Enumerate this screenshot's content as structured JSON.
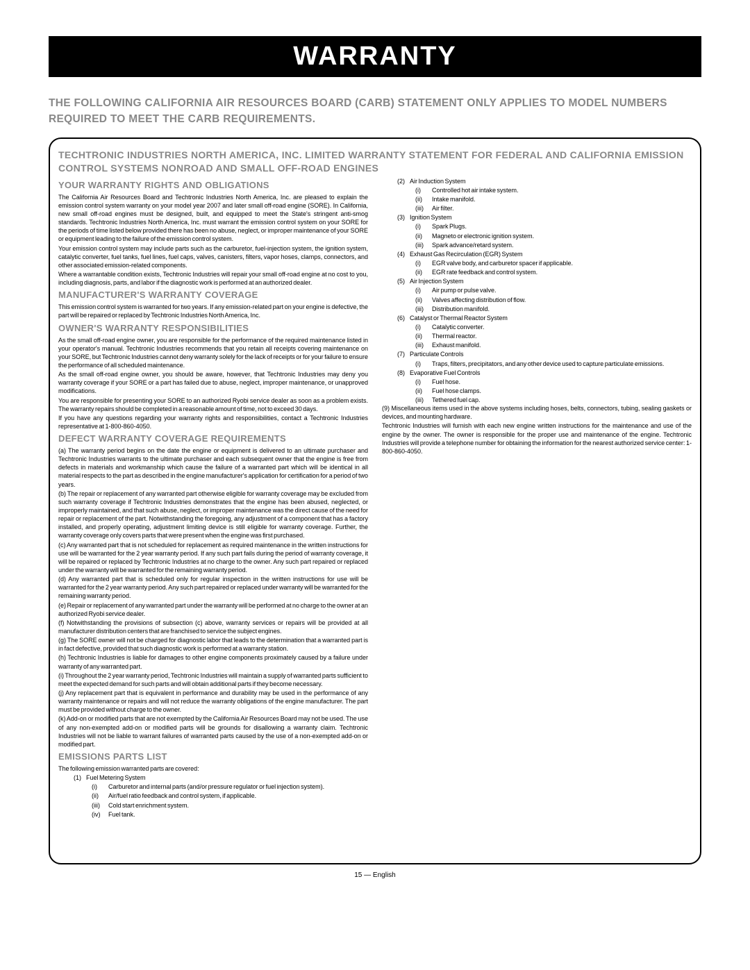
{
  "banner": "WARRANTY",
  "subhead": "THE FOLLOWING CALIFORNIA AIR RESOURCES BOARD (CARB) STATEMENT ONLY APPLIES TO MODEL NUMBERS REQUIRED TO MEET THE CARB REQUIREMENTS.",
  "boxhead1": "TECHTRONIC INDUSTRIES NORTH AMERICA, INC. LIMITED WARRANTY STATEMENT FOR FEDERAL AND CALIFORNIA EMISSION CONTROL SYSTEMS NONROAD AND SMALL OFF-ROAD ENGINES",
  "sect_rights": "YOUR WARRANTY RIGHTS AND OBLIGATIONS",
  "rights": [
    "The California Air Resources Board and Techtronic Industries North America, Inc. are pleased to explain the emission control system warranty on your model year 2007 and later small off-road engine (SORE). In California, new small off-road engines must be designed, built, and equipped to meet the State's stringent anti-smog standards. Techtronic Industries North America, Inc. must warrant the emission control system on your SORE for the periods of time listed below provided there has been no abuse, neglect, or improper maintenance of your SORE or equipment leading to the failure of the emission control system.",
    "Your emission control system may include parts such as the carburetor, fuel-injection system, the ignition system, catalytic converter, fuel tanks, fuel lines, fuel caps, valves, canisters, filters, vapor hoses, clamps, connectors, and other associated emission-related components.",
    "Where a warrantable condition exists, Techtronic Industries will repair your small off-road engine at no cost to you, including diagnosis, parts, and labor if the diagnostic work is performed at an authorized dealer."
  ],
  "sect_mfg": "MANUFACTURER'S WARRANTY COVERAGE",
  "mfg": "This emission control system is warranted for two years. If any emission-related part on your engine is defective, the part will be repaired or replaced by Techtronic Industries North America, Inc.",
  "sect_owner": "OWNER'S WARRANTY RESPONSIBILITIES",
  "owner": [
    "As the small off-road engine owner, you are responsible for the performance of the required maintenance listed in your operator's manual. Techtronic Industries recommends that you retain all receipts covering maintenance on your SORE, but Techtronic Industries cannot deny warranty solely for the lack of receipts or for your failure to ensure the performance of all scheduled maintenance.",
    "As the small off-road engine owner, you should be aware, however, that Techtronic Industries may deny you warranty coverage if your SORE or a part has failed due to abuse, neglect, improper maintenance, or unapproved modifications.",
    "You are responsible for presenting your SORE to an authorized Ryobi service dealer as soon as a problem exists. The warranty repairs should be completed in a reasonable amount of time, not to exceed 30 days.",
    "If you have any questions regarding your warranty rights and responsibilities, contact a Techtronic Industries representative at 1-800-860-4050."
  ],
  "sect_defect": "DEFECT WARRANTY COVERAGE REQUIREMENTS",
  "defect": [
    "(a) The warranty period begins on the date the engine or equipment is delivered to an ultimate purchaser and Techtronic Industries warrants to the ultimate purchaser and each subsequent owner that the engine is free from defects in materials and workmanship which cause the failure of a warranted part which will be identical in all material respects to the part as described in the engine manufacturer's application for certification for a period of two years.",
    "(b) The repair or replacement of any warranted part otherwise eligible for warranty coverage may be excluded from such warranty coverage if Techtronic Industries demonstrates that the engine has been abused, neglected, or improperly maintained, and that such abuse, neglect, or improper maintenance was the direct cause of the need for repair or replacement of the part. Notwithstanding the foregoing, any adjustment of a component that has a factory installed, and properly operating, adjustment limiting device is still eligible for warranty coverage. Further, the warranty coverage only covers parts that were present when the engine was first purchased.",
    "(c) Any warranted part that is not scheduled for replacement as required maintenance in the written instructions for use will be warranted for the 2 year warranty period. If any such part fails during the period of warranty coverage, it will be repaired or replaced by Techtronic Industries at no charge to the owner. Any such part repaired or replaced under the warranty will be warranted for the remaining warranty period.",
    "(d) Any warranted part that is scheduled only for regular inspection in the written instructions for use will be warranted for the 2 year warranty period. Any such part repaired or replaced under warranty will be warranted for the remaining warranty period.",
    "(e) Repair or replacement of any warranted part under the warranty will be performed at no charge to the owner at an authorized Ryobi service dealer.",
    "(f) Notwithstanding the provisions of subsection (c) above, warranty services or repairs will be provided at all manufacturer distribution centers that are franchised to service the subject engines.",
    "(g) The SORE owner will not be charged for diagnostic labor that leads to the determination that a warranted part is in fact defective, provided that such diagnostic work is performed at a warranty station.",
    "(h) Techtronic Industries is liable for damages to other engine components proximately caused by a failure under warranty of any warranted part.",
    "(i) Throughout the 2 year warranty period, Techtronic Industries will maintain a supply of warranted parts sufficient to meet the expected demand for such parts and will obtain additional parts if they become necessary.",
    "(j) Any replacement part that is equivalent in performance and durability may be used in the performance of any warranty maintenance or repairs and will not reduce the warranty obligations of the engine manufacturer. The part must be provided without charge to the owner.",
    "(k) Add-on or modified parts that are not exempted by the California Air Resources Board may not be used. The use of any non-exempted add-on or modified parts will be grounds for disallowing a warranty claim. Techtronic Industries will not be liable to warrant failures of warranted parts caused by the use of a non-exempted add-on or modified part."
  ],
  "sect_parts": "EMISSIONS PARTS LIST",
  "parts_intro": "The following emission warranted parts are covered:",
  "parts": [
    {
      "n": "(1)",
      "t": "Fuel Metering System",
      "s": [
        {
          "n": "(i)",
          "t": "Carburetor and internal parts (and/or pressure regulator or fuel injection system)."
        },
        {
          "n": "(ii)",
          "t": "Air/fuel ratio feedback and control system, if applicable."
        },
        {
          "n": "(iii)",
          "t": "Cold start enrichment system."
        },
        {
          "n": "(iv)",
          "t": "Fuel tank."
        }
      ]
    },
    {
      "n": "(2)",
      "t": "Air Induction System",
      "s": [
        {
          "n": "(i)",
          "t": "Controlled hot air intake system."
        },
        {
          "n": "(ii)",
          "t": "Intake manifold."
        },
        {
          "n": "(iii)",
          "t": "Air ﬁlter."
        }
      ]
    },
    {
      "n": "(3)",
      "t": "Ignition System",
      "s": [
        {
          "n": "(i)",
          "t": "Spark Plugs."
        },
        {
          "n": "(ii)",
          "t": "Magneto or electronic ignition system."
        },
        {
          "n": "(iii)",
          "t": "Spark advance/retard system."
        }
      ]
    },
    {
      "n": "(4)",
      "t": "Exhaust Gas Recirculation (EGR) System",
      "s": [
        {
          "n": "(i)",
          "t": "EGR valve body, and carburetor spacer if applicable."
        },
        {
          "n": "(ii)",
          "t": "EGR rate feedback and control system."
        }
      ]
    },
    {
      "n": "(5)",
      "t": "Air Injection System",
      "s": [
        {
          "n": "(i)",
          "t": "Air pump or pulse valve."
        },
        {
          "n": "(ii)",
          "t": "Valves affecting distribution of flow."
        },
        {
          "n": "(iii)",
          "t": "Distribution manifold."
        }
      ]
    },
    {
      "n": "(6)",
      "t": "Catalyst or Thermal Reactor System",
      "s": [
        {
          "n": "(i)",
          "t": "Catalytic converter."
        },
        {
          "n": "(ii)",
          "t": "Thermal reactor."
        },
        {
          "n": "(iii)",
          "t": "Exhaust manifold."
        }
      ]
    },
    {
      "n": "(7)",
      "t": "Particulate Controls",
      "s": [
        {
          "n": "(i)",
          "t": "Traps, filters, precipitators, and any other device used to capture particulate emissions."
        }
      ]
    },
    {
      "n": "(8)",
      "t": "Evaporative Fuel Controls",
      "s": [
        {
          "n": "(i)",
          "t": "Fuel hose."
        },
        {
          "n": "(ii)",
          "t": "Fuel hose clamps."
        },
        {
          "n": "(iii)",
          "t": "Tethered fuel cap."
        }
      ]
    }
  ],
  "parts_tail": [
    "(9) Miscellaneous items used in the above systems including hoses, belts, connectors, tubing, sealing gaskets or devices, and mounting hardware.",
    "Techtronic Industries will furnish with each new engine written instructions for the maintenance and use of the engine by the owner. The owner is responsible for the proper use and maintenance of the engine. Techtronic Industries will provide a telephone number for obtaining the information for the nearest authorized service center: 1-800-860-4050."
  ],
  "pagenum": "15 — English"
}
